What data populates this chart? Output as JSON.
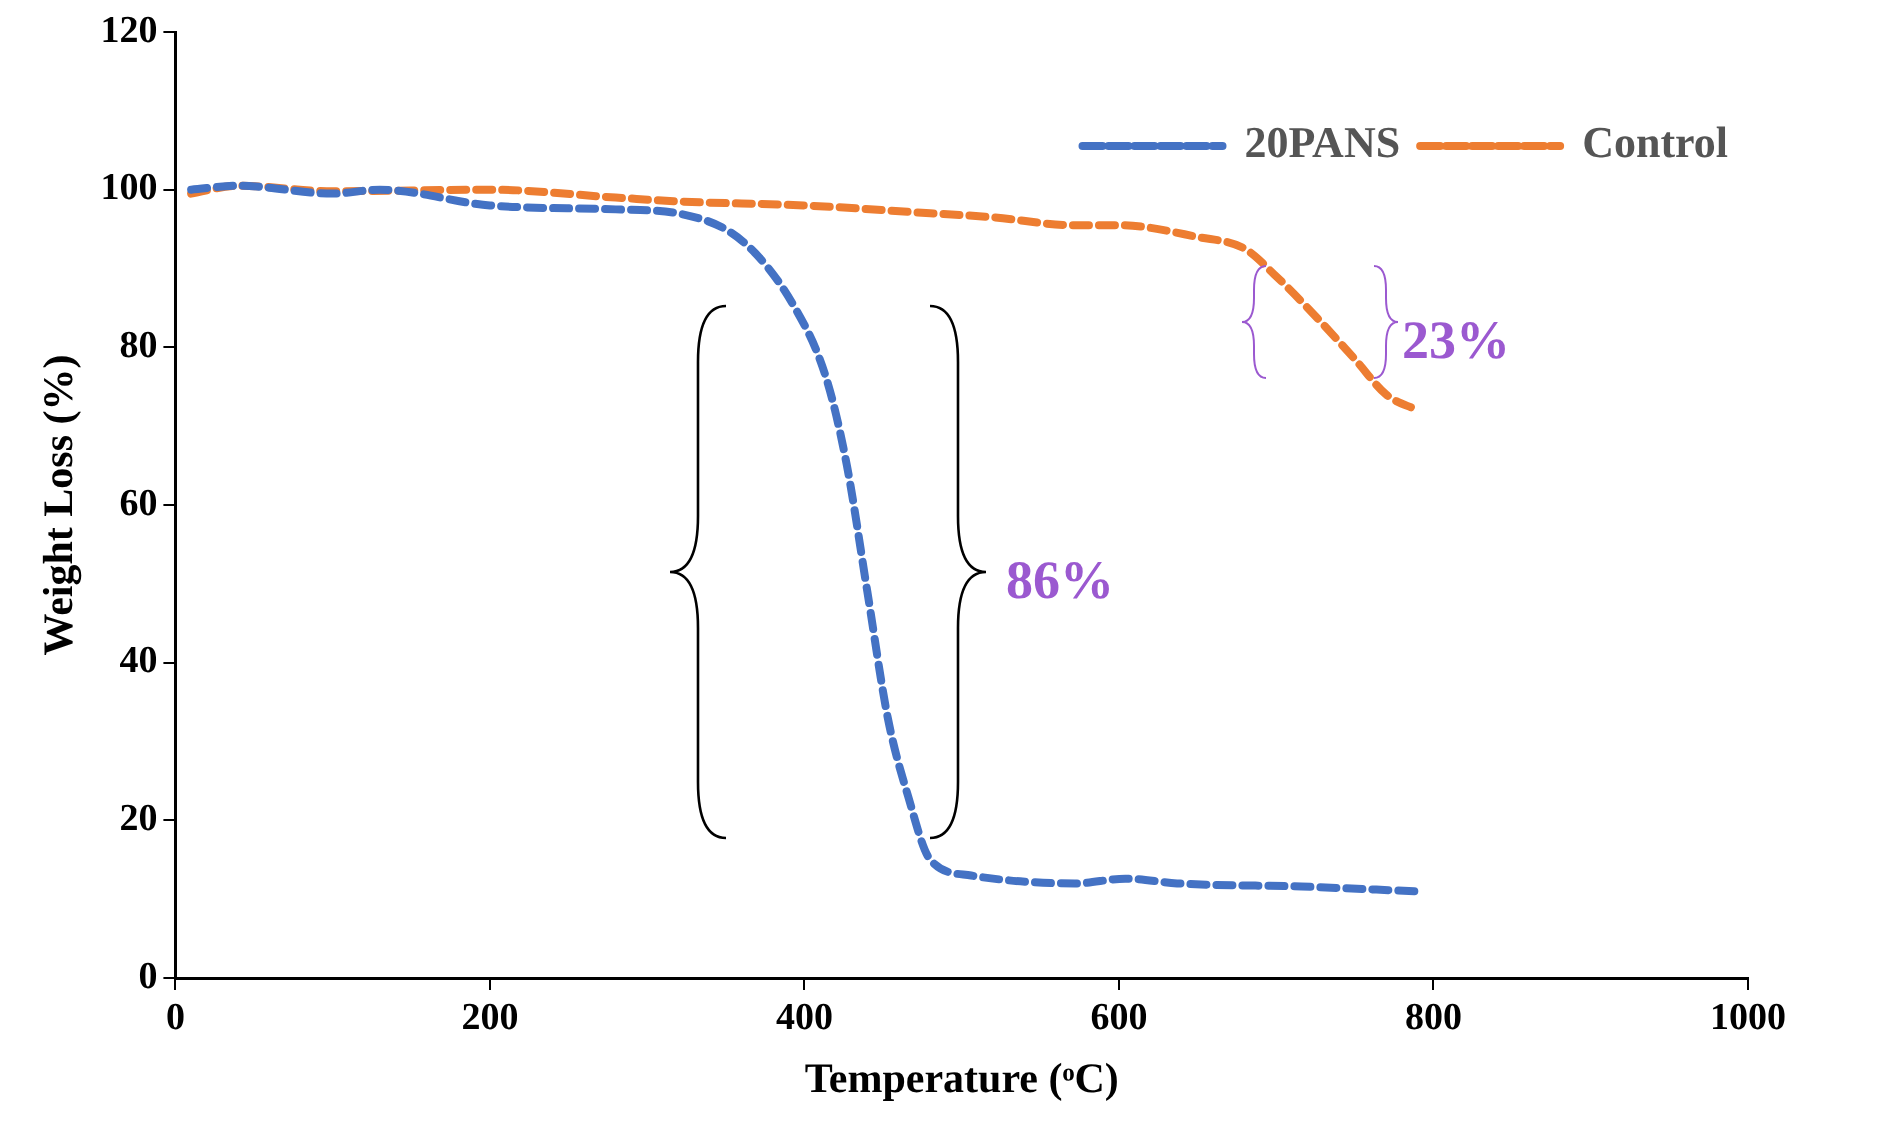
{
  "chart_data": {
    "type": "line",
    "xlabel": "Temperature (ᵒC)",
    "ylabel": "Weight Loss (%)",
    "xlim": [
      0,
      1000
    ],
    "xticks": [
      0,
      200,
      400,
      600,
      800,
      1000
    ],
    "ylim": [
      0,
      120
    ],
    "yticks": [
      0,
      20,
      40,
      60,
      80,
      100,
      120
    ],
    "grid": false,
    "legend": "top right",
    "line_style": "dashed",
    "marker": "none",
    "series": [
      {
        "name": "20PANS",
        "color": "#4472c4",
        "x": [
          10,
          40,
          100,
          130,
          200,
          280,
          322,
          361,
          394,
          414,
          427,
          440,
          453,
          466,
          480,
          506,
          572,
          604,
          637,
          716,
          788
        ],
        "values": [
          100,
          100.5,
          99.5,
          100,
          98,
          97.5,
          96.9,
          93.4,
          85,
          76,
          65,
          49,
          33,
          23,
          15,
          13,
          12,
          12.6,
          12,
          11.6,
          11
        ]
      },
      {
        "name": "Control",
        "color": "#ed7d31",
        "x": [
          10,
          40,
          100,
          200,
          280,
          320,
          400,
          480,
          520,
          570,
          600,
          650,
          680,
          700,
          720,
          750,
          770,
          790
        ],
        "values": [
          99.5,
          100.5,
          99.8,
          100,
          99,
          98.5,
          98,
          97,
          96.5,
          95.5,
          95.5,
          94,
          92.5,
          89,
          85,
          78.5,
          74,
          72
        ]
      }
    ],
    "annotations": [
      "86%",
      "23%"
    ]
  }
}
